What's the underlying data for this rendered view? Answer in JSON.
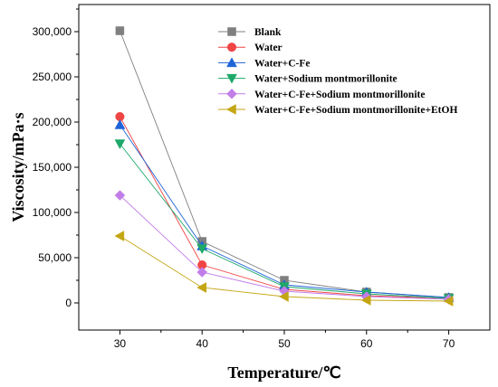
{
  "chart_data": {
    "type": "line",
    "xlabel": "Temperature/℃",
    "ylabel": "Viscosity/mPa·s",
    "x": [
      30,
      40,
      50,
      60,
      70
    ],
    "xlim": [
      25,
      75
    ],
    "ylim": [
      -30000,
      330000
    ],
    "xticks": [
      "30",
      "40",
      "50",
      "60",
      "70"
    ],
    "yticks": [
      "0",
      "50,000",
      "100,000",
      "150,000",
      "200,000",
      "250,000",
      "300,000"
    ],
    "legend_position": "top-right",
    "grid": false,
    "series": [
      {
        "name": "Blank",
        "values": [
          301000,
          68000,
          25000,
          12000,
          6000
        ],
        "color": "#7f7f7f",
        "marker": "square"
      },
      {
        "name": "Water",
        "values": [
          206000,
          42000,
          15000,
          8000,
          5000
        ],
        "color": "#f04545",
        "marker": "circle"
      },
      {
        "name": "Water+C-Fe",
        "values": [
          197000,
          63000,
          20000,
          12000,
          6000
        ],
        "color": "#1e64d8",
        "marker": "triangle-up"
      },
      {
        "name": "Water+Sodium montmorillonite",
        "values": [
          176000,
          60000,
          18000,
          10000,
          5000
        ],
        "color": "#1ea86a",
        "marker": "triangle-down"
      },
      {
        "name": "Water+C-Fe+Sodium montmorillonite",
        "values": [
          119000,
          34000,
          13000,
          7000,
          4000
        ],
        "color": "#c27ee8",
        "marker": "diamond"
      },
      {
        "name": "Water+C-Fe+Sodium montmorillonite+EtOH",
        "values": [
          74000,
          17000,
          7000,
          3000,
          2000
        ],
        "color": "#c4a614",
        "marker": "triangle-left"
      }
    ]
  }
}
